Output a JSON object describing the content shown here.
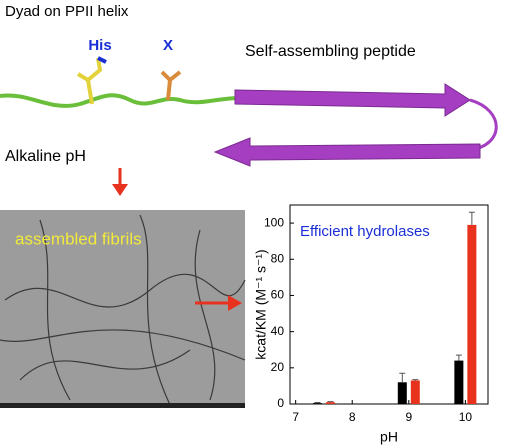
{
  "labels": {
    "dyad": "Dyad on PPII helix",
    "his": "His",
    "x": "X",
    "peptide": "Self-assembling peptide",
    "alkaline": "Alkaline pH",
    "fibrils": "assembled fibrils"
  },
  "chart_data": {
    "type": "bar",
    "title": "Efficient hydrolases",
    "xlabel": "pH",
    "ylabel": "kcat/KM (M⁻¹ s⁻¹)",
    "x": [
      7.5,
      9,
      10
    ],
    "series": [
      {
        "color": "#000000",
        "values": [
          0.5,
          12,
          24
        ],
        "errors": [
          0.3,
          5,
          3
        ]
      },
      {
        "color": "#e8321e",
        "values": [
          1,
          13,
          99
        ],
        "errors": [
          0.3,
          0.5,
          7
        ]
      }
    ],
    "xlim": [
      6.9,
      10.4
    ],
    "xticks": [
      7,
      8,
      9,
      10
    ],
    "ylim": [
      0,
      110
    ],
    "yticks": [
      0,
      20,
      40,
      60,
      80,
      100
    ]
  }
}
